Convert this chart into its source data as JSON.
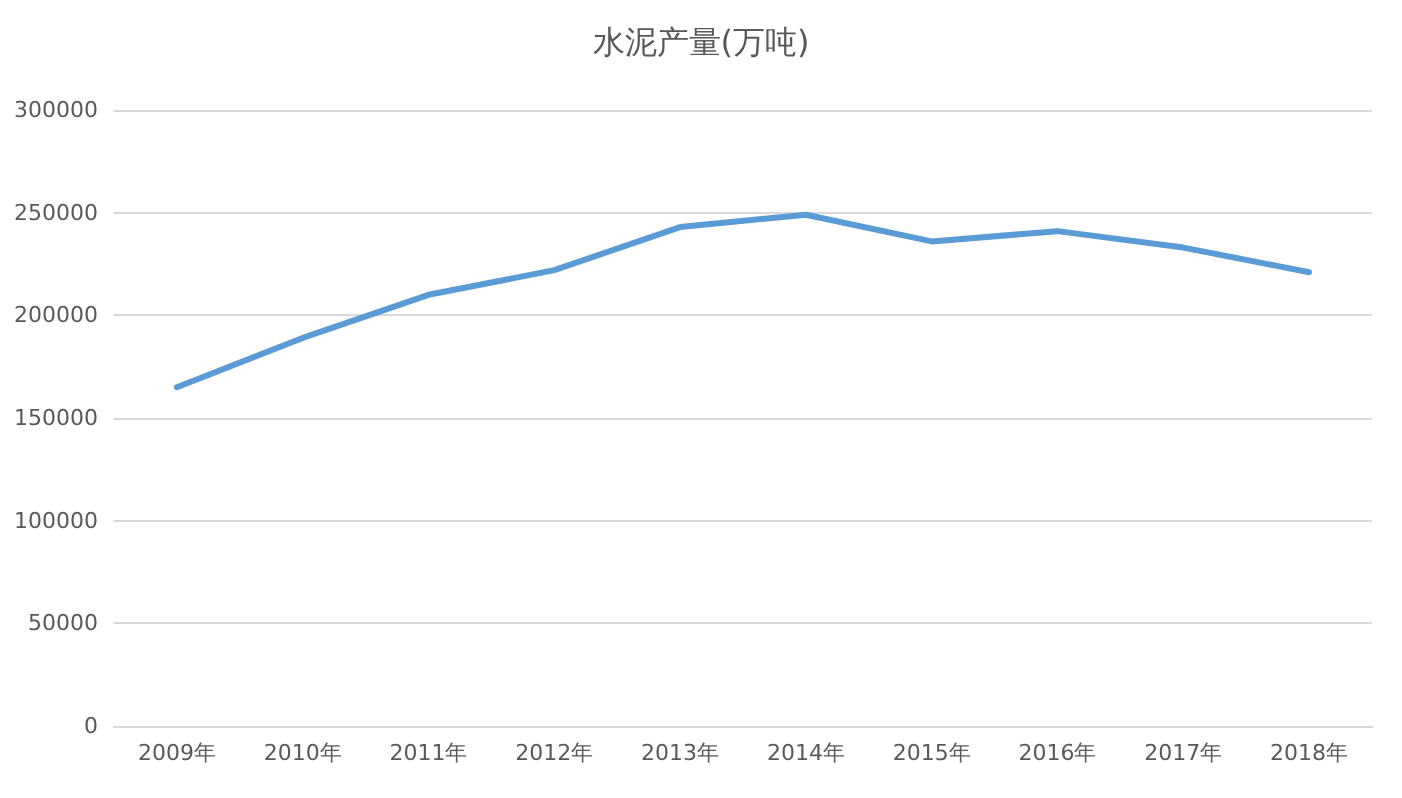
{
  "chart_data": {
    "type": "line",
    "title": "水泥产量(万吨)",
    "categories": [
      "2009年",
      "2010年",
      "2011年",
      "2012年",
      "2013年",
      "2014年",
      "2015年",
      "2016年",
      "2017年",
      "2018年"
    ],
    "series": [
      {
        "color": "#5b9bd5",
        "values": [
          165000,
          189000,
          210000,
          222000,
          243000,
          249000,
          236000,
          241000,
          233000,
          221000
        ]
      }
    ],
    "ylim": [
      0,
      300000
    ],
    "yticks": [
      0,
      50000,
      100000,
      150000,
      200000,
      250000,
      300000
    ],
    "grid": "y",
    "marker": "none",
    "line_style": "solid"
  }
}
